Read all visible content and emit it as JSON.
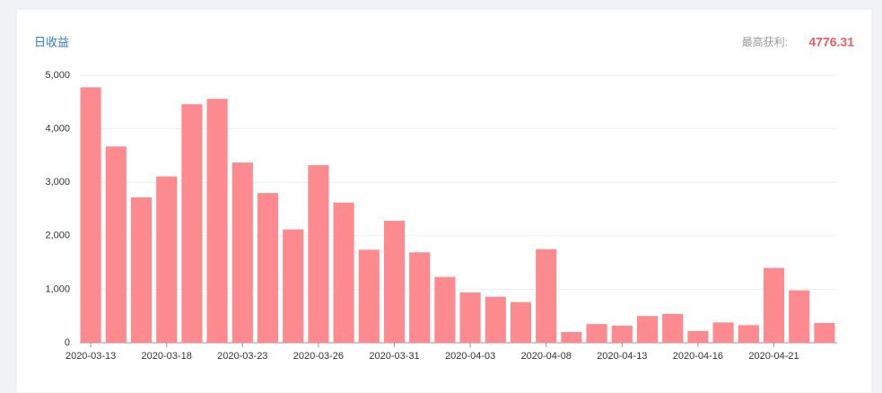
{
  "chart_data": {
    "type": "bar",
    "title": "日收益",
    "annotation": {
      "label": "最高获利:",
      "value": 4776.31
    },
    "categories": [
      "2020-03-13",
      null,
      null,
      "2020-03-18",
      null,
      null,
      "2020-03-23",
      null,
      null,
      "2020-03-26",
      null,
      null,
      "2020-03-31",
      null,
      null,
      "2020-04-03",
      null,
      null,
      "2020-04-08",
      null,
      null,
      "2020-04-13",
      null,
      null,
      "2020-04-16",
      null,
      null,
      "2020-04-21",
      null,
      null
    ],
    "values": [
      4776.31,
      3670,
      2720,
      3110,
      4460,
      4560,
      3370,
      2800,
      2120,
      3320,
      2620,
      1740,
      2280,
      1690,
      1230,
      940,
      860,
      760,
      1750,
      200,
      350,
      320,
      500,
      540,
      220,
      380,
      330,
      1400,
      980,
      370
    ],
    "color": "#fc8a8e",
    "ylim": [
      0,
      5000
    ],
    "yticks": [
      0,
      {
        "value": 1000,
        "label": "1,000"
      },
      {
        "value": 2000,
        "label": "2,000"
      },
      {
        "value": 3000,
        "label": "3,000"
      },
      {
        "value": 4000,
        "label": "4,000"
      },
      {
        "value": 5000,
        "label": "5,000"
      }
    ],
    "grid": true
  }
}
